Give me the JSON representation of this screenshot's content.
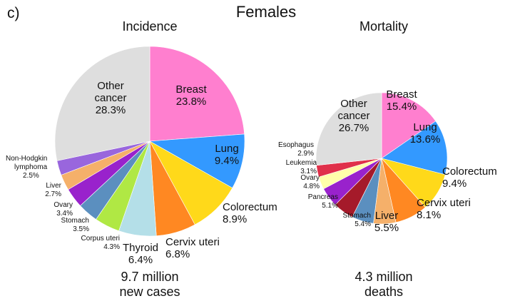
{
  "figure": {
    "panel_label": "c)",
    "title": "Females"
  },
  "chart_data": [
    {
      "type": "pie",
      "title": "Incidence",
      "caption": [
        "9.7 million",
        "new cases"
      ],
      "slices": [
        {
          "name": "Breast",
          "value": 23.8,
          "label": "23.8%",
          "color": "#ff7fcf"
        },
        {
          "name": "Lung",
          "value": 9.4,
          "label": "9.4%",
          "color": "#3399ff"
        },
        {
          "name": "Colorectum",
          "value": 8.9,
          "label": "8.9%",
          "color": "#ffd91a"
        },
        {
          "name": "Cervix uteri",
          "value": 6.8,
          "label": "6.8%",
          "color": "#ff8822"
        },
        {
          "name": "Thyroid",
          "value": 6.4,
          "label": "6.4%",
          "color": "#b4dfe8"
        },
        {
          "name": "Corpus uteri",
          "value": 4.3,
          "label": "4.3%",
          "color": "#b0e844"
        },
        {
          "name": "Stomach",
          "value": 3.5,
          "label": "3.5%",
          "color": "#5b8fbf"
        },
        {
          "name": "Ovary",
          "value": 3.4,
          "label": "3.4%",
          "color": "#9922cc"
        },
        {
          "name": "Liver",
          "value": 2.7,
          "label": "2.7%",
          "color": "#f5b06a"
        },
        {
          "name": "Non-Hodgkin lymphoma",
          "value": 2.5,
          "label": "2.5%",
          "color": "#9966dd"
        },
        {
          "name": "Other cancer",
          "value": 28.3,
          "label": "28.3%",
          "color": "#dedede"
        }
      ]
    },
    {
      "type": "pie",
      "title": "Mortality",
      "caption": [
        "4.3 million",
        "deaths"
      ],
      "slices": [
        {
          "name": "Breast",
          "value": 15.4,
          "label": "15.4%",
          "color": "#ff7fcf"
        },
        {
          "name": "Lung",
          "value": 13.6,
          "label": "13.6%",
          "color": "#3399ff"
        },
        {
          "name": "Colorectum",
          "value": 9.4,
          "label": "9.4%",
          "color": "#ffd91a"
        },
        {
          "name": "Cervix uteri",
          "value": 8.1,
          "label": "8.1%",
          "color": "#ff8822"
        },
        {
          "name": "Liver",
          "value": 5.5,
          "label": "5.5%",
          "color": "#f5b06a"
        },
        {
          "name": "Stomach",
          "value": 5.4,
          "label": "5.4%",
          "color": "#5b8fbf"
        },
        {
          "name": "Pancreas",
          "value": 5.1,
          "label": "5.1%",
          "color": "#a51a2a"
        },
        {
          "name": "Ovary",
          "value": 4.8,
          "label": "4.8%",
          "color": "#9922cc"
        },
        {
          "name": "Leukemia",
          "value": 3.1,
          "label": "3.1%",
          "color": "#ffffaa"
        },
        {
          "name": "Esophagus",
          "value": 2.9,
          "label": "2.9%",
          "color": "#e0304a"
        },
        {
          "name": "Other cancer",
          "value": 26.7,
          "label": "26.7%",
          "color": "#dedede"
        }
      ]
    }
  ]
}
